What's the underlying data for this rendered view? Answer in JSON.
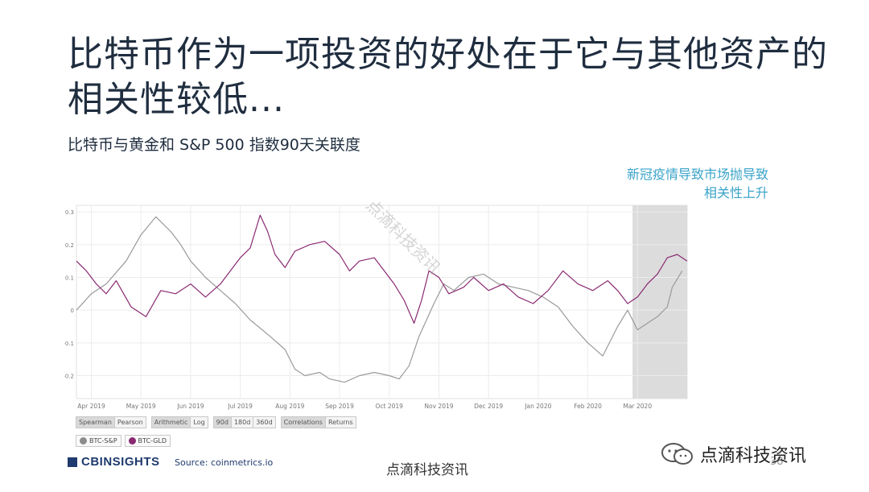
{
  "title": "比特币作为一项投资的好处在于它与其他资产的相关性较低...",
  "subtitle": "比特币与黄金和 S&P 500 指数90天关联度",
  "annotation": {
    "line1": "新冠疫情导致市场抛导致",
    "line2": "相关性上升"
  },
  "chart_data": {
    "type": "line",
    "x_ticks": [
      "Apr 2019",
      "May 2019",
      "Jun 2019",
      "Jul 2019",
      "Aug 2019",
      "Sep 2019",
      "Oct 2019",
      "Nov 2019",
      "Dec 2019",
      "Jan 2020",
      "Feb 2020",
      "Mar 2020"
    ],
    "y_ticks": [
      "0.3",
      "0.2",
      "0.1",
      "0",
      "-0.1",
      "-0.2"
    ],
    "ylim": [
      -0.27,
      0.32
    ],
    "x_range": [
      0,
      12.3
    ],
    "shaded_region": [
      11.2,
      12.3
    ],
    "grid": true,
    "series": [
      {
        "name": "BTC-S&P",
        "color": "#9a9a9a",
        "points": [
          [
            0,
            0
          ],
          [
            0.3,
            0.05
          ],
          [
            0.6,
            0.08
          ],
          [
            1.0,
            0.15
          ],
          [
            1.3,
            0.23
          ],
          [
            1.6,
            0.285
          ],
          [
            1.9,
            0.24
          ],
          [
            2.1,
            0.2
          ],
          [
            2.3,
            0.15
          ],
          [
            2.6,
            0.1
          ],
          [
            2.9,
            0.06
          ],
          [
            3.2,
            0.02
          ],
          [
            3.5,
            -0.03
          ],
          [
            3.9,
            -0.08
          ],
          [
            4.2,
            -0.12
          ],
          [
            4.4,
            -0.18
          ],
          [
            4.6,
            -0.2
          ],
          [
            4.9,
            -0.19
          ],
          [
            5.1,
            -0.21
          ],
          [
            5.4,
            -0.22
          ],
          [
            5.7,
            -0.2
          ],
          [
            6.0,
            -0.19
          ],
          [
            6.3,
            -0.2
          ],
          [
            6.5,
            -0.21
          ],
          [
            6.7,
            -0.17
          ],
          [
            6.9,
            -0.08
          ],
          [
            7.2,
            0.02
          ],
          [
            7.4,
            0.08
          ],
          [
            7.6,
            0.06
          ],
          [
            7.9,
            0.1
          ],
          [
            8.2,
            0.11
          ],
          [
            8.5,
            0.08
          ],
          [
            8.8,
            0.07
          ],
          [
            9.1,
            0.06
          ],
          [
            9.4,
            0.04
          ],
          [
            9.7,
            0.01
          ],
          [
            10.0,
            -0.05
          ],
          [
            10.3,
            -0.1
          ],
          [
            10.6,
            -0.14
          ],
          [
            10.9,
            -0.05
          ],
          [
            11.1,
            0.0
          ],
          [
            11.3,
            -0.06
          ],
          [
            11.5,
            -0.04
          ],
          [
            11.7,
            -0.02
          ],
          [
            11.9,
            0.01
          ],
          [
            12.0,
            0.07
          ],
          [
            12.2,
            0.12
          ]
        ]
      },
      {
        "name": "BTC-GLD",
        "color": "#8a2a72",
        "points": [
          [
            0,
            0.15
          ],
          [
            0.2,
            0.12
          ],
          [
            0.4,
            0.08
          ],
          [
            0.6,
            0.05
          ],
          [
            0.8,
            0.09
          ],
          [
            1.1,
            0.01
          ],
          [
            1.4,
            -0.02
          ],
          [
            1.7,
            0.06
          ],
          [
            2.0,
            0.05
          ],
          [
            2.3,
            0.08
          ],
          [
            2.6,
            0.04
          ],
          [
            2.9,
            0.08
          ],
          [
            3.1,
            0.12
          ],
          [
            3.3,
            0.16
          ],
          [
            3.5,
            0.19
          ],
          [
            3.7,
            0.29
          ],
          [
            3.85,
            0.24
          ],
          [
            4.0,
            0.17
          ],
          [
            4.2,
            0.13
          ],
          [
            4.4,
            0.18
          ],
          [
            4.7,
            0.2
          ],
          [
            5.0,
            0.21
          ],
          [
            5.3,
            0.17
          ],
          [
            5.5,
            0.12
          ],
          [
            5.7,
            0.15
          ],
          [
            6.0,
            0.16
          ],
          [
            6.2,
            0.12
          ],
          [
            6.4,
            0.08
          ],
          [
            6.6,
            0.03
          ],
          [
            6.8,
            -0.04
          ],
          [
            6.95,
            0.03
          ],
          [
            7.1,
            0.12
          ],
          [
            7.3,
            0.1
          ],
          [
            7.5,
            0.05
          ],
          [
            7.8,
            0.07
          ],
          [
            8.0,
            0.1
          ],
          [
            8.3,
            0.06
          ],
          [
            8.6,
            0.08
          ],
          [
            8.9,
            0.04
          ],
          [
            9.2,
            0.02
          ],
          [
            9.5,
            0.06
          ],
          [
            9.8,
            0.12
          ],
          [
            10.1,
            0.08
          ],
          [
            10.4,
            0.06
          ],
          [
            10.7,
            0.09
          ],
          [
            10.9,
            0.06
          ],
          [
            11.1,
            0.02
          ],
          [
            11.3,
            0.04
          ],
          [
            11.5,
            0.08
          ],
          [
            11.7,
            0.11
          ],
          [
            11.9,
            0.16
          ],
          [
            12.1,
            0.17
          ],
          [
            12.3,
            0.15
          ]
        ]
      }
    ]
  },
  "controls": {
    "row1": [
      {
        "group": [
          {
            "label": "Spearman",
            "active": true
          },
          {
            "label": "Pearson",
            "active": false
          }
        ]
      },
      {
        "group": [
          {
            "label": "Arithmetic",
            "active": true
          },
          {
            "label": "Log",
            "active": false
          }
        ]
      },
      {
        "group": [
          {
            "label": "90d",
            "active": true
          },
          {
            "label": "180d",
            "active": false
          },
          {
            "label": "360d",
            "active": false
          }
        ]
      },
      {
        "group": [
          {
            "label": "Correlations",
            "active": true
          },
          {
            "label": "Returns",
            "active": false
          }
        ]
      }
    ],
    "legend": [
      "BTC-S&P",
      "BTC-GLD"
    ]
  },
  "footer": {
    "brand": "CBINSIGHTS",
    "source": "Source: coinmetrics.io",
    "watermark_bottom": "点滴科技资讯",
    "page_number": "38",
    "wechat_name": "点滴科技资讯",
    "diagonal_watermark": "点滴科技资讯"
  }
}
